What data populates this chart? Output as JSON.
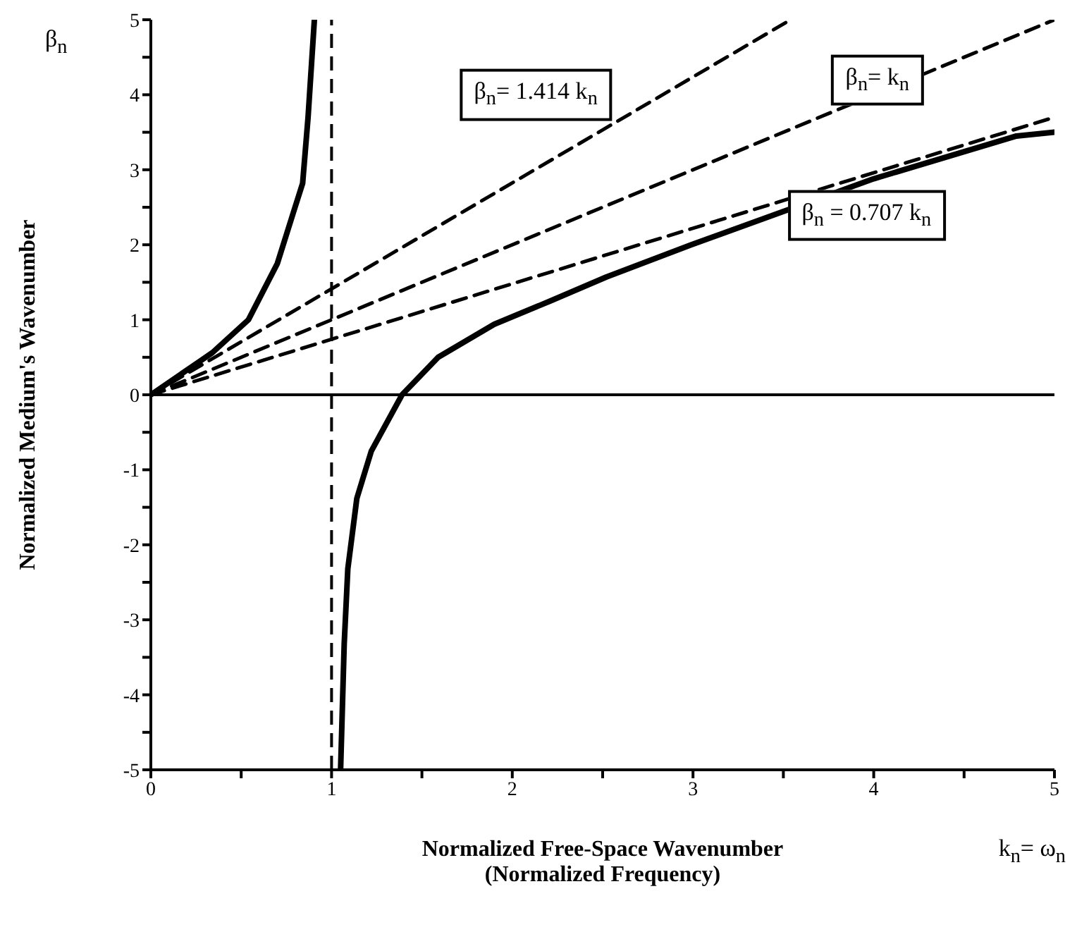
{
  "chart_data": {
    "type": "line",
    "xlabel": "Normalized Free-Space Wavenumber\n(Normalized Frequency)",
    "ylabel": "Normalized Medium's Wavenumber",
    "xlim": [
      0,
      5
    ],
    "ylim": [
      -5,
      5
    ],
    "xticks": [
      0,
      {
        "value": 0.5,
        "label": null
      },
      1,
      {
        "value": 1.5,
        "label": null
      },
      2,
      {
        "value": 2.5,
        "label": null
      },
      3,
      {
        "value": 3.5,
        "label": null
      },
      4,
      {
        "value": 4.5,
        "label": null
      },
      5
    ],
    "yticks": [
      -5,
      {
        "value": -4.5,
        "label": null
      },
      -4,
      {
        "value": -3.5,
        "label": null
      },
      -3,
      {
        "value": -2.5,
        "label": null
      },
      -2,
      {
        "value": -1.5,
        "label": null
      },
      -1,
      {
        "value": -0.5,
        "label": null
      },
      0,
      {
        "value": 0.5,
        "label": null
      },
      1,
      {
        "value": 1.5,
        "label": null
      },
      2,
      {
        "value": 2.5,
        "label": null
      },
      3,
      {
        "value": 3.5,
        "label": null
      },
      4,
      {
        "value": 4.5,
        "label": null
      },
      5
    ],
    "marker": "none",
    "series": [
      {
        "color": "#000000",
        "line_style": "solid",
        "x": [
          0,
          0.34,
          0.54,
          0.7,
          0.79,
          0.84,
          0.87,
          0.905,
          1.0,
          1.05,
          1.07,
          1.09,
          1.14,
          1.22,
          1.39,
          1.59,
          1.9,
          2.21,
          2.52,
          2.99,
          4.0,
          4.79,
          5
        ],
        "values": [
          0,
          0.56,
          1.0,
          1.75,
          2.44,
          2.82,
          3.7,
          5,
          null,
          -5,
          -3.32,
          -2.32,
          -1.38,
          -0.75,
          0,
          0.5,
          0.94,
          1.25,
          1.57,
          2.0,
          2.88,
          3.45,
          3.5
        ]
      },
      {
        "color": "#000000",
        "line_style": "dashed",
        "x": [
          0,
          3.54
        ],
        "values": [
          0,
          5
        ]
      },
      {
        "color": "#000000",
        "line_style": "dashed",
        "x": [
          0,
          5
        ],
        "values": [
          0,
          5
        ]
      },
      {
        "color": "#000000",
        "line_style": "dashed",
        "x": [
          0,
          5
        ],
        "values": [
          0,
          3.7
        ]
      }
    ],
    "ref_lines": [
      {
        "axis": "y",
        "value": 0,
        "color": "#000000",
        "line_style": "solid"
      },
      {
        "axis": "x",
        "value": 1,
        "color": "#000000",
        "line_style": "dashed"
      }
    ],
    "annotations": [
      "β$_{n}$",
      "k$_{n}$= ω$_{n}$",
      "β$_{n}$= 1.414 k$_{n}$",
      "β$_{n}$= k$_{n}$",
      "β$_{n}$ = 0.707 k$_{n}$"
    ]
  }
}
